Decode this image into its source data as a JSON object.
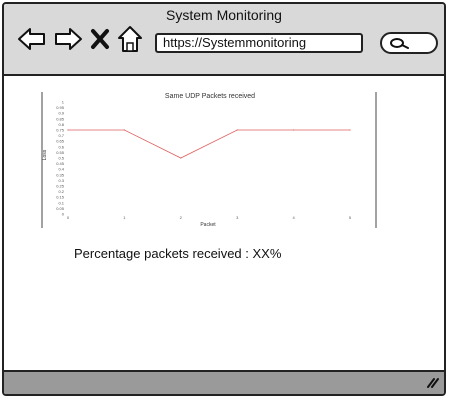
{
  "window": {
    "title": "System Monitoring"
  },
  "toolbar": {
    "back_icon": "arrow-left-icon",
    "forward_icon": "arrow-right-icon",
    "stop_icon": "close-icon",
    "home_icon": "home-icon",
    "url": "https://Systemmonitoring",
    "search_icon": "search-icon"
  },
  "chart_data": {
    "type": "line",
    "title": "Same UDP Packets received",
    "xlabel": "Packet",
    "ylabel": "Loss",
    "x": [
      0,
      1,
      2,
      3,
      4,
      5
    ],
    "series": [
      {
        "values": [
          0.75,
          0.75,
          0.5,
          0.75,
          0.75,
          0.75
        ]
      }
    ],
    "xlim": [
      0,
      5
    ],
    "ylim": [
      0,
      1
    ],
    "yticks": [
      1.0,
      0.95,
      0.9,
      0.85,
      0.8,
      0.75,
      0.7,
      0.65,
      0.6,
      0.55,
      0.5,
      0.45,
      0.4,
      0.35,
      0.3,
      0.25,
      0.2,
      0.15,
      0.1,
      0.05,
      0
    ],
    "xticks": [
      0,
      1,
      2,
      3,
      4,
      5
    ],
    "grid": false,
    "line_color": "#e06060"
  },
  "summary": {
    "text": "Percentage packets received : XX%"
  }
}
